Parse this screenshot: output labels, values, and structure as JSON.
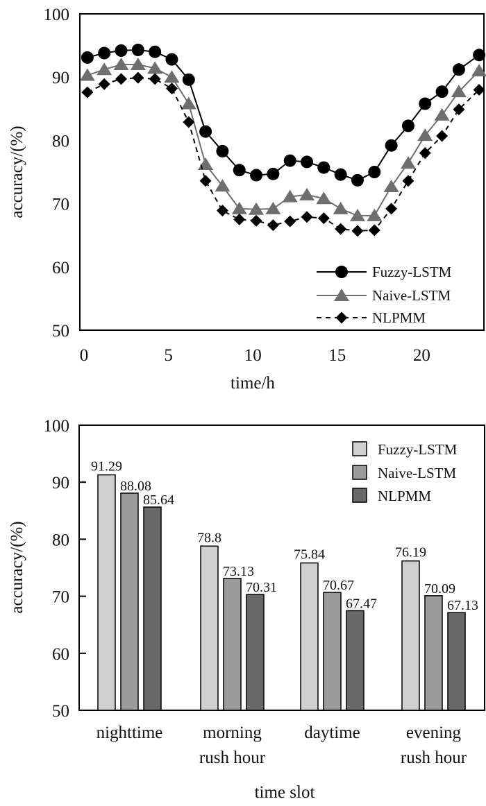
{
  "chart_data": [
    {
      "type": "line",
      "title": "",
      "xlabel": "time/h",
      "ylabel": "accuracy/(%)",
      "xlim": [
        0,
        23.7
      ],
      "ylim": [
        50,
        100
      ],
      "xticks": [
        0,
        5,
        10,
        15,
        20
      ],
      "yticks": [
        50,
        60,
        70,
        80,
        90,
        100
      ],
      "grid": false,
      "legend_position": "bottom-right",
      "x": [
        0.2,
        1.2,
        2.2,
        3.2,
        4.2,
        5.2,
        6.2,
        7.2,
        8.2,
        9.2,
        10.2,
        11.2,
        12.2,
        13.2,
        14.2,
        15.2,
        16.2,
        17.2,
        18.2,
        19.2,
        20.2,
        21.2,
        22.2,
        23.4
      ],
      "series": [
        {
          "name": "Fuzzy-LSTM",
          "marker": "circle",
          "line": "solid",
          "color": "#000000",
          "values": [
            93.1,
            93.8,
            94.2,
            94.3,
            94.0,
            92.8,
            89.6,
            81.4,
            78.3,
            75.3,
            74.5,
            74.7,
            76.8,
            76.6,
            75.7,
            74.6,
            73.7,
            75.0,
            79.2,
            82.3,
            85.8,
            87.7,
            91.2,
            93.5
          ]
        },
        {
          "name": "Naive-LSTM",
          "marker": "triangle",
          "line": "solid",
          "color": "#6e6e6e",
          "values": [
            90.3,
            91.2,
            92.0,
            92.0,
            91.4,
            90.0,
            85.8,
            76.2,
            72.8,
            69.2,
            69.1,
            69.2,
            71.1,
            71.4,
            70.8,
            69.2,
            68.1,
            68.1,
            72.7,
            76.4,
            80.8,
            84.0,
            87.7,
            91.0
          ]
        },
        {
          "name": "NLPMM",
          "marker": "diamond",
          "line": "dashed",
          "color": "#000000",
          "values": [
            87.6,
            88.9,
            89.7,
            89.9,
            89.7,
            88.2,
            82.9,
            73.6,
            68.9,
            67.5,
            67.3,
            66.6,
            67.2,
            67.9,
            67.7,
            66.0,
            65.7,
            65.8,
            69.2,
            73.6,
            78.0,
            80.7,
            84.9,
            88.0
          ]
        }
      ]
    },
    {
      "type": "bar",
      "title": "",
      "xlabel": "time slot",
      "ylabel": "accuracy/(%)",
      "ylim": [
        50,
        100
      ],
      "yticks": [
        50,
        60,
        70,
        80,
        90,
        100
      ],
      "grid": false,
      "legend_position": "top-right",
      "categories": [
        [
          "nighttime"
        ],
        [
          "morning",
          "rush hour"
        ],
        [
          "daytime"
        ],
        [
          "evening",
          "rush hour"
        ]
      ],
      "series": [
        {
          "name": "Fuzzy-LSTM",
          "color": "#cfcfcf",
          "values": [
            91.29,
            78.8,
            75.84,
            76.19
          ],
          "labels": [
            "91.29",
            "78.8",
            "75.84",
            "76.19"
          ]
        },
        {
          "name": "Naive-LSTM",
          "color": "#9b9b9b",
          "values": [
            88.08,
            73.13,
            70.67,
            70.09
          ],
          "labels": [
            "88.08",
            "73.13",
            "70.67",
            "70.09"
          ]
        },
        {
          "name": "NLPMM",
          "color": "#686868",
          "values": [
            85.64,
            70.31,
            67.47,
            67.13
          ],
          "labels": [
            "85.64",
            "70.31",
            "67.47",
            "67.13"
          ]
        }
      ]
    }
  ]
}
